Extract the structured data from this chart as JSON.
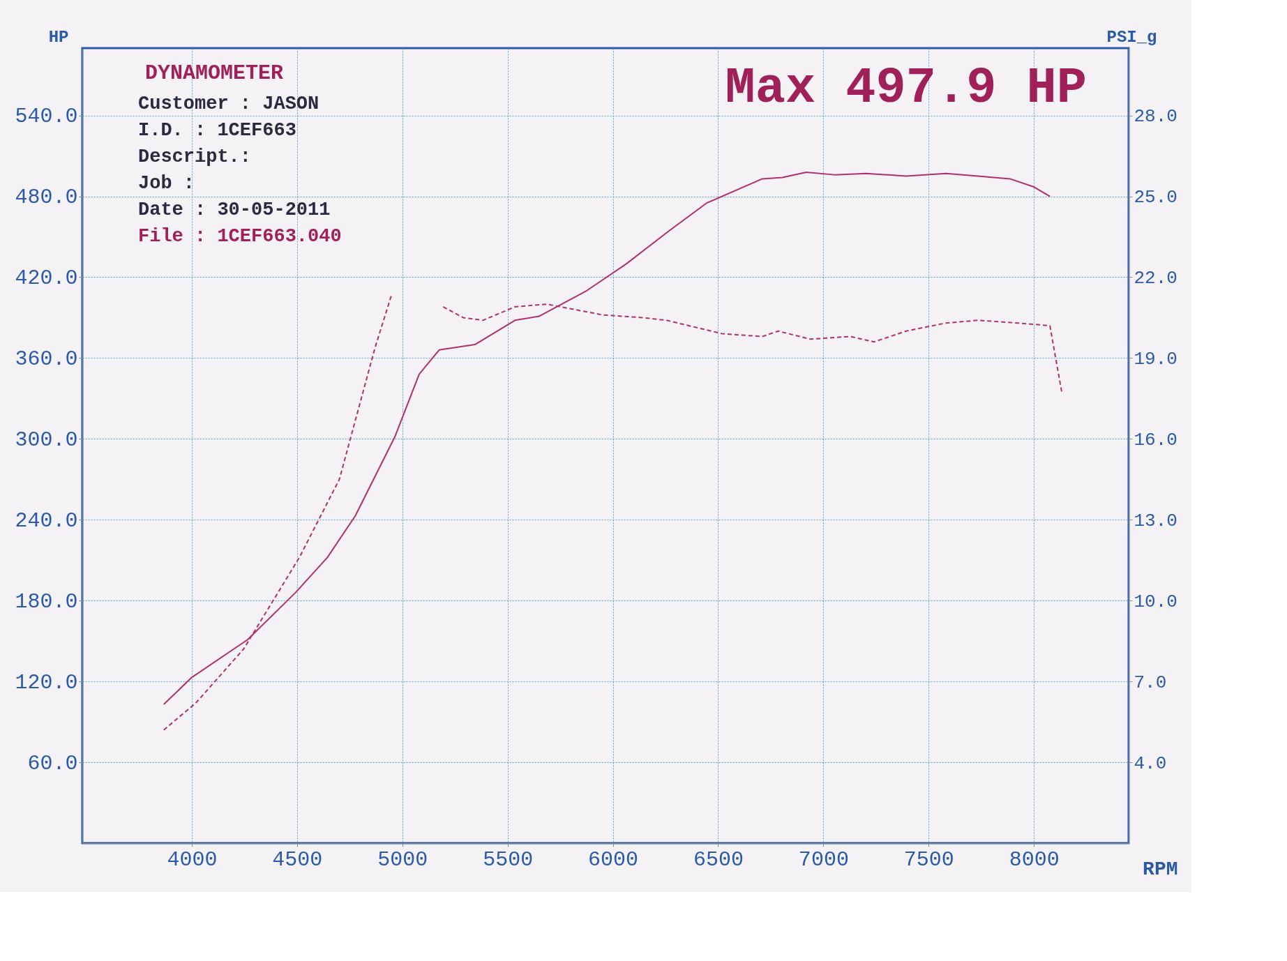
{
  "chart_data": {
    "type": "line",
    "xlabel": "RPM",
    "ylabel": "HP",
    "y2label": "PSI_g",
    "xlim": [
      3480,
      8450
    ],
    "xticks": [
      4000,
      4500,
      5000,
      5500,
      6000,
      6500,
      7000,
      7500,
      8000
    ],
    "ylim": [
      0,
      590
    ],
    "yticks": [
      {
        "value": 60,
        "label": "60.0"
      },
      {
        "value": 120,
        "label": "120.0"
      },
      {
        "value": 180,
        "label": "180.0"
      },
      {
        "value": 240,
        "label": "240.0"
      },
      {
        "value": 300,
        "label": "300.0"
      },
      {
        "value": 360,
        "label": "360.0"
      },
      {
        "value": 420,
        "label": "420.0"
      },
      {
        "value": 480,
        "label": "480.0"
      },
      {
        "value": 540,
        "label": "540.0"
      }
    ],
    "y2lim": [
      1,
      30.5
    ],
    "y2ticks": [
      {
        "value": 4,
        "label": "4.0"
      },
      {
        "value": 7,
        "label": "7.0"
      },
      {
        "value": 10,
        "label": "10.0"
      },
      {
        "value": 13,
        "label": "13.0"
      },
      {
        "value": 16,
        "label": "16.0"
      },
      {
        "value": 19,
        "label": "19.0"
      },
      {
        "value": 22,
        "label": "22.0"
      },
      {
        "value": 25,
        "label": "25.0"
      },
      {
        "value": 28,
        "label": "28.0"
      }
    ],
    "grid": true,
    "series": [
      {
        "color": "#b0306a",
        "line_style": "solid",
        "axis": "y",
        "x": [
          3867,
          4000,
          4265,
          4493,
          4644,
          4777,
          4966,
          5080,
          5175,
          5345,
          5535,
          5649,
          5876,
          6065,
          6255,
          6445,
          6710,
          6805,
          6919,
          7052,
          7203,
          7393,
          7583,
          7734,
          7886,
          8000,
          8076
        ],
        "values": [
          103,
          123,
          151,
          186,
          212,
          243,
          302,
          348,
          366,
          370,
          388,
          391,
          410,
          430,
          453,
          475,
          493,
          494,
          497.9,
          496,
          497,
          495,
          497,
          495,
          493,
          487,
          480
        ]
      },
      {
        "color": "#b0306a",
        "line_style": "dashed",
        "axis": "y2",
        "x": [
          3867,
          4019,
          4246,
          4511,
          4701,
          4871,
          4947,
          5050,
          5194,
          5289,
          5383,
          5535,
          5686,
          5952,
          6141,
          6255,
          6521,
          6710,
          6786,
          6938,
          7127,
          7241,
          7393,
          7583,
          7734,
          7924,
          8076,
          8133
        ],
        "values": [
          5.2,
          6.2,
          8.2,
          11.6,
          14.5,
          19.4,
          21.3,
          null,
          20.9,
          20.5,
          20.4,
          20.9,
          21.0,
          20.6,
          20.5,
          20.4,
          19.9,
          19.8,
          20.0,
          19.7,
          19.8,
          19.6,
          20.0,
          20.3,
          20.4,
          20.3,
          20.2,
          17.7
        ]
      }
    ],
    "annotations": [
      "DYNAMOMETER",
      "Customer : JASON",
      "I.D.     : 1CEF663",
      "Descript.:",
      "Job      :",
      "Date     : 30-05-2011",
      "File     : 1CEF663.040",
      "Max 497.9 HP"
    ]
  }
}
